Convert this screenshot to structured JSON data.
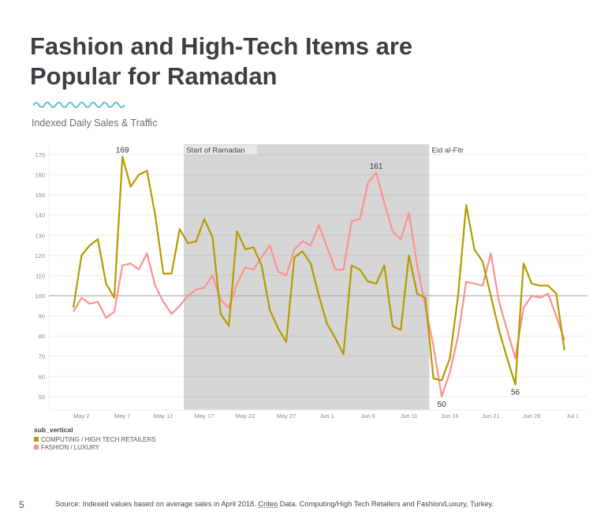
{
  "title_line1": "Fashion and High-Tech Items are",
  "title_line2": "Popular for Ramadan",
  "subtitle": "Indexed Daily Sales & Traffic",
  "page_number": "5",
  "source": {
    "before": "Source: Indexed values based on average sales in April 2018. ",
    "flagged": "Criteo",
    "after": " Data. Computing/High Tech Retailers and Fashion/Luxury, Turkey."
  },
  "colors": {
    "computing": "#b59a00",
    "fashion": "#ff9090",
    "shade": "#d6d6d6",
    "title": "#3b4046",
    "wave": "#5fc4c0"
  },
  "chart_data": {
    "type": "line",
    "title": "Indexed Daily Sales & Traffic",
    "x_start": "May 1",
    "x_end": "Jun 30",
    "xlabel": "",
    "ylabel": "",
    "ylim": [
      44,
      173
    ],
    "y_ticks": [
      50,
      60,
      70,
      80,
      90,
      100,
      110,
      120,
      130,
      140,
      150,
      160,
      170
    ],
    "x_ticks": [
      {
        "label": "May 2",
        "day": 1
      },
      {
        "label": "May 7",
        "day": 6
      },
      {
        "label": "May 12",
        "day": 11
      },
      {
        "label": "May 17",
        "day": 16
      },
      {
        "label": "May 22",
        "day": 21
      },
      {
        "label": "May 27",
        "day": 26
      },
      {
        "label": "Jun 1",
        "day": 31
      },
      {
        "label": "Jun 6",
        "day": 36
      },
      {
        "label": "Jun 11",
        "day": 41
      },
      {
        "label": "Jun 16",
        "day": 46
      },
      {
        "label": "Jun 21",
        "day": 51
      },
      {
        "label": "Jun 26",
        "day": 56
      },
      {
        "label": "Jul 1",
        "day": 61
      }
    ],
    "reference_line": 100,
    "grid": true,
    "legend_title": "sub_vertical",
    "legend_position": "bottom-left",
    "regions": [
      {
        "label": "Start of Ramadan",
        "start_day": 14,
        "end_day": 43
      },
      {
        "label": "Eid al-Fitr",
        "start_day": 44,
        "end_day": 60
      }
    ],
    "series": [
      {
        "name": "COMPUTING / HIGH TECH RETAILERS",
        "key": "computing",
        "values": [
          94,
          120,
          125,
          128,
          106,
          99,
          169,
          154,
          160,
          162,
          140,
          111,
          111,
          133,
          126,
          127,
          138,
          129,
          91,
          85,
          132,
          123,
          124,
          115,
          93,
          84,
          77,
          119,
          122,
          116,
          100,
          86,
          79,
          71,
          115,
          113,
          107,
          106,
          115,
          85,
          83,
          120,
          101,
          99,
          59,
          58,
          69,
          100,
          145,
          123,
          117,
          100,
          83,
          69,
          56,
          116,
          106,
          105,
          105,
          101,
          73
        ]
      },
      {
        "name": "FASHION / LUXURY",
        "key": "fashion",
        "values": [
          92,
          99,
          96,
          97,
          89,
          92,
          115,
          116,
          113,
          121,
          105,
          97,
          91,
          95,
          100,
          103,
          104,
          110,
          98,
          94,
          106,
          114,
          113,
          119,
          125,
          112,
          110,
          123,
          127,
          125,
          135,
          124,
          113,
          113,
          137,
          138,
          156,
          161,
          146,
          132,
          128,
          141,
          115,
          95,
          75,
          50,
          62,
          80,
          107,
          106,
          105,
          121,
          97,
          83,
          69,
          94,
          100,
          99,
          101,
          90,
          78
        ]
      }
    ],
    "annotations": [
      {
        "text": "169",
        "series": "computing",
        "day": 6,
        "position": "above"
      },
      {
        "text": "161",
        "series": "fashion",
        "day": 37,
        "position": "above"
      },
      {
        "text": "50",
        "series": "fashion",
        "day": 45,
        "position": "below"
      },
      {
        "text": "56",
        "series": "computing",
        "day": 54,
        "position": "below"
      }
    ]
  }
}
